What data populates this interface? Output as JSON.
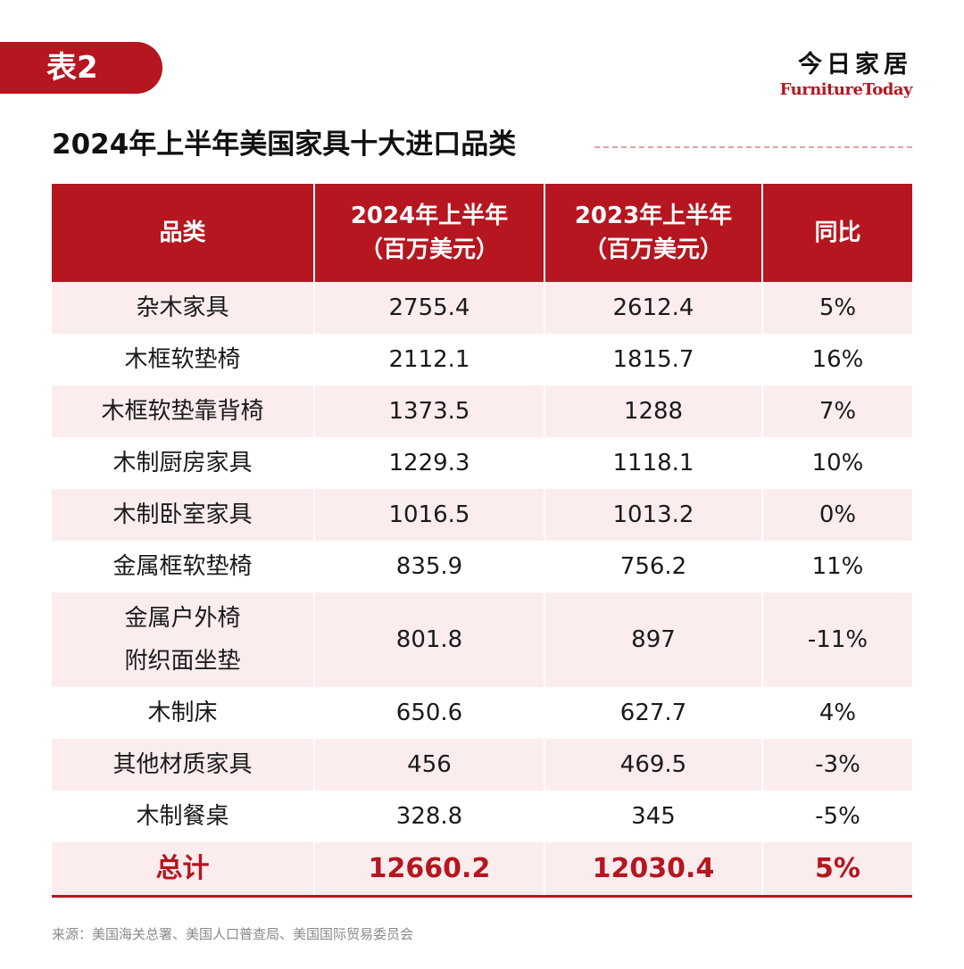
{
  "tag": "表2",
  "brand": {
    "cn": "今日家居",
    "en": "FurnitureToday"
  },
  "title": "2024年上半年美国家具十大进口品类",
  "headers": [
    {
      "line1": "品类",
      "line2": ""
    },
    {
      "line1": "2024年上半年",
      "line2": "（百万美元）"
    },
    {
      "line1": "2023年上半年",
      "line2": "（百万美元）"
    },
    {
      "line1": "同比",
      "line2": ""
    }
  ],
  "rows": [
    {
      "category": "杂木家具",
      "y2024": "2755.4",
      "y2023": "2612.4",
      "yoy": "5%"
    },
    {
      "category": "木框软垫椅",
      "y2024": "2112.1",
      "y2023": "1815.7",
      "yoy": "16%"
    },
    {
      "category": "木框软垫靠背椅",
      "y2024": "1373.5",
      "y2023": "1288",
      "yoy": "7%"
    },
    {
      "category": "木制厨房家具",
      "y2024": "1229.3",
      "y2023": "1118.1",
      "yoy": "10%"
    },
    {
      "category": "木制卧室家具",
      "y2024": "1016.5",
      "y2023": "1013.2",
      "yoy": "0%"
    },
    {
      "category": "金属框软垫椅",
      "y2024": "835.9",
      "y2023": "756.2",
      "yoy": "11%"
    },
    {
      "category": "金属户外椅\n附织面坐垫",
      "y2024": "801.8",
      "y2023": "897",
      "yoy": "-11%"
    },
    {
      "category": "木制床",
      "y2024": "650.6",
      "y2023": "627.7",
      "yoy": "4%"
    },
    {
      "category": "其他材质家具",
      "y2024": "456",
      "y2023": "469.5",
      "yoy": "-3%"
    },
    {
      "category": "木制餐桌",
      "y2024": "328.8",
      "y2023": "345",
      "yoy": "-5%"
    }
  ],
  "total": {
    "category": "总计",
    "y2024": "12660.2",
    "y2023": "12030.4",
    "yoy": "5%"
  },
  "source": "来源：美国海关总署、美国人口普查局、美国国际贸易委员会",
  "colors": {
    "accent": "#b5161f",
    "row_tint": "#fbecee"
  }
}
